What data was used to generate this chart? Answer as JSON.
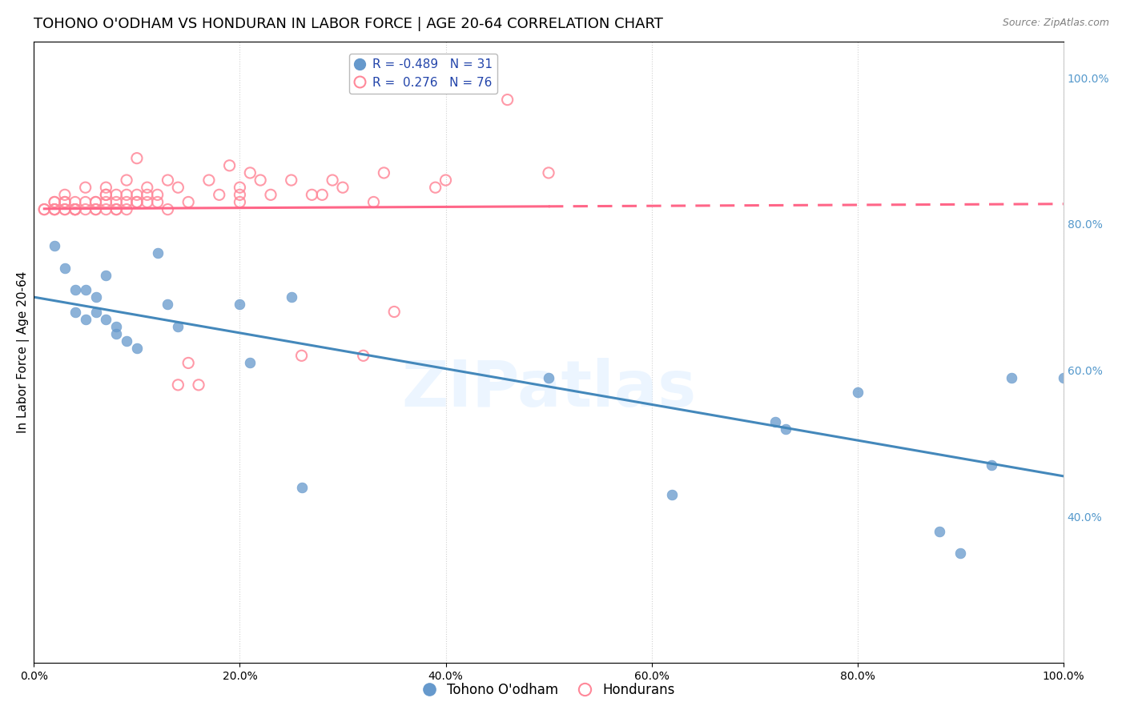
{
  "title": "TOHONO O'ODHAM VS HONDURAN IN LABOR FORCE | AGE 20-64 CORRELATION CHART",
  "source": "Source: ZipAtlas.com",
  "ylabel": "In Labor Force | Age 20-64",
  "blue_label": "Tohono O'odham",
  "pink_label": "Hondurans",
  "blue_R": -0.489,
  "blue_N": 31,
  "pink_R": 0.276,
  "pink_N": 76,
  "blue_color": "#6699CC",
  "pink_color": "#FF8899",
  "blue_line_color": "#4488BB",
  "pink_line_color": "#FF6688",
  "background_color": "#FFFFFF",
  "watermark": "ZIPatlas",
  "blue_x": [
    0.02,
    0.03,
    0.04,
    0.04,
    0.05,
    0.05,
    0.06,
    0.06,
    0.07,
    0.07,
    0.08,
    0.08,
    0.09,
    0.1,
    0.12,
    0.13,
    0.14,
    0.2,
    0.21,
    0.25,
    0.26,
    0.5,
    0.62,
    0.72,
    0.73,
    0.8,
    0.88,
    0.9,
    0.93,
    0.95,
    1.0
  ],
  "blue_y": [
    0.77,
    0.74,
    0.71,
    0.68,
    0.71,
    0.67,
    0.7,
    0.68,
    0.73,
    0.67,
    0.66,
    0.65,
    0.64,
    0.63,
    0.76,
    0.69,
    0.66,
    0.69,
    0.61,
    0.7,
    0.44,
    0.59,
    0.43,
    0.53,
    0.52,
    0.57,
    0.38,
    0.35,
    0.47,
    0.59,
    0.59
  ],
  "pink_x": [
    0.01,
    0.01,
    0.02,
    0.02,
    0.02,
    0.02,
    0.02,
    0.03,
    0.03,
    0.03,
    0.03,
    0.03,
    0.04,
    0.04,
    0.04,
    0.04,
    0.04,
    0.05,
    0.05,
    0.05,
    0.06,
    0.06,
    0.06,
    0.06,
    0.07,
    0.07,
    0.07,
    0.07,
    0.07,
    0.08,
    0.08,
    0.08,
    0.08,
    0.09,
    0.09,
    0.09,
    0.09,
    0.1,
    0.1,
    0.1,
    0.1,
    0.11,
    0.11,
    0.11,
    0.12,
    0.12,
    0.13,
    0.13,
    0.14,
    0.14,
    0.15,
    0.15,
    0.16,
    0.17,
    0.18,
    0.19,
    0.2,
    0.2,
    0.2,
    0.21,
    0.22,
    0.23,
    0.25,
    0.26,
    0.27,
    0.28,
    0.29,
    0.3,
    0.32,
    0.33,
    0.34,
    0.35,
    0.39,
    0.4,
    0.46,
    0.5
  ],
  "pink_y": [
    0.82,
    0.82,
    0.82,
    0.82,
    0.83,
    0.83,
    0.82,
    0.83,
    0.82,
    0.82,
    0.83,
    0.84,
    0.82,
    0.82,
    0.82,
    0.83,
    0.82,
    0.82,
    0.83,
    0.85,
    0.82,
    0.83,
    0.82,
    0.83,
    0.84,
    0.83,
    0.82,
    0.84,
    0.85,
    0.82,
    0.83,
    0.84,
    0.82,
    0.84,
    0.83,
    0.86,
    0.82,
    0.83,
    0.84,
    0.83,
    0.89,
    0.83,
    0.85,
    0.84,
    0.84,
    0.83,
    0.82,
    0.86,
    0.85,
    0.58,
    0.83,
    0.61,
    0.58,
    0.86,
    0.84,
    0.88,
    0.85,
    0.84,
    0.83,
    0.87,
    0.86,
    0.84,
    0.86,
    0.62,
    0.84,
    0.84,
    0.86,
    0.85,
    0.62,
    0.83,
    0.87,
    0.68,
    0.85,
    0.86,
    0.97,
    0.87
  ],
  "xlim": [
    0.0,
    1.0
  ],
  "ylim": [
    0.2,
    1.05
  ],
  "right_yticks": [
    0.4,
    0.6,
    0.8,
    1.0
  ],
  "right_yticklabels": [
    "40.0%",
    "60.0%",
    "80.0%",
    "100.0%"
  ],
  "xtick_labels": [
    "0.0%",
    "20.0%",
    "40.0%",
    "60.0%",
    "80.0%",
    "100.0%"
  ],
  "xtick_values": [
    0.0,
    0.2,
    0.4,
    0.6,
    0.8,
    1.0
  ],
  "title_fontsize": 13,
  "axis_fontsize": 11,
  "tick_fontsize": 10,
  "legend_fontsize": 11
}
